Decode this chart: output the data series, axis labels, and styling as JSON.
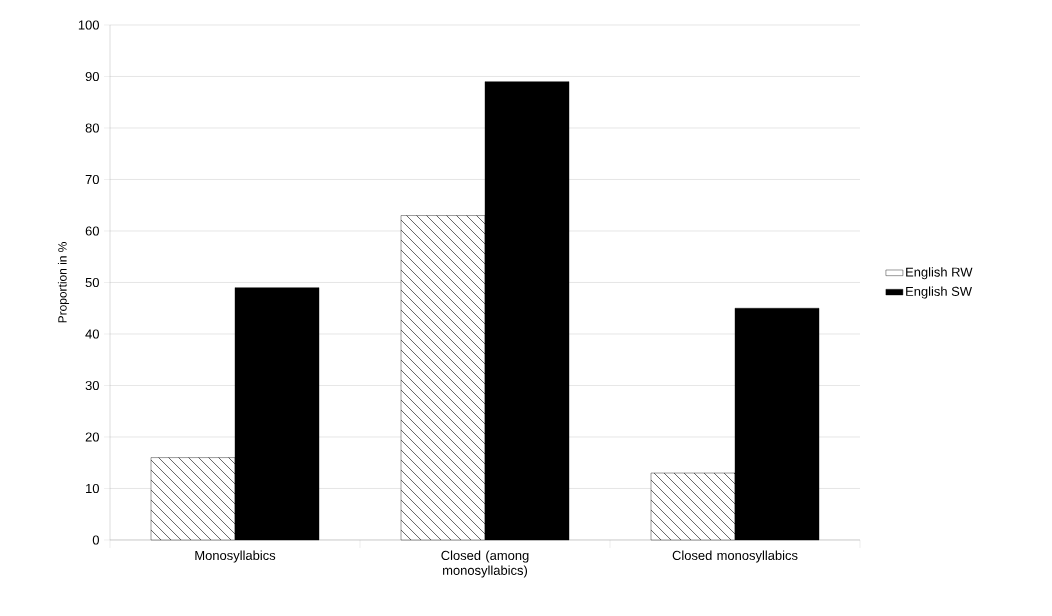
{
  "chart_data": {
    "type": "bar",
    "ylabel": "Proportion in %",
    "categories": [
      "Monosyllabics",
      "Closed (among monosyllabics)",
      "Closed monosyllabics"
    ],
    "series": [
      {
        "name": "English RW",
        "color": "#ffffff",
        "values": [
          16,
          63,
          13
        ]
      },
      {
        "name": "English SW",
        "color": "#000000",
        "values": [
          49,
          89,
          45
        ]
      }
    ],
    "ylim": [
      0,
      100
    ],
    "yticks": [
      0,
      10,
      20,
      30,
      40,
      50,
      60,
      70,
      80,
      90,
      100
    ],
    "grid": "y",
    "legend": "right"
  }
}
